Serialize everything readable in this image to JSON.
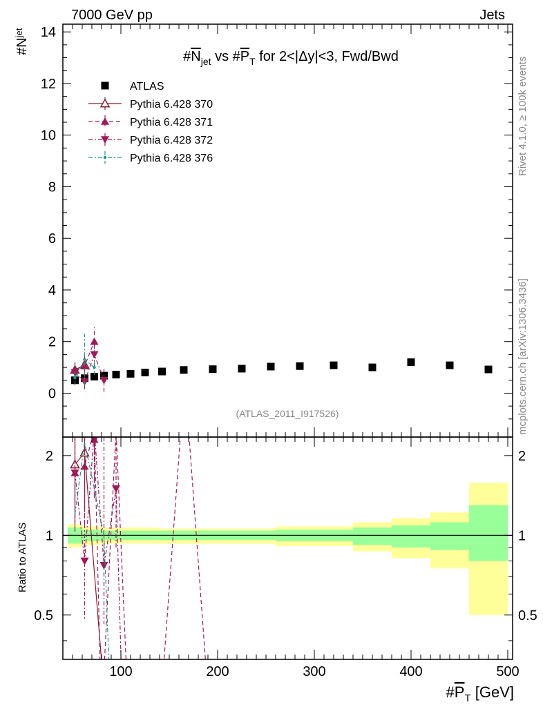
{
  "header": {
    "left": "7000 GeV pp",
    "right": "Jets"
  },
  "side_labels": {
    "top": "Rivet 4.1.0, ≥ 100k events",
    "bottom": "mcplots.cern.ch [arXiv:1306.3436]"
  },
  "colors": {
    "atlas": "#000000",
    "p370": "#8b1a2a",
    "p371": "#a0185a",
    "p372": "#a0185a",
    "p376": "#159a8a",
    "band_inner": "#99ff99",
    "band_outer": "#ffff99"
  },
  "chart_data": [
    {
      "type": "scatter",
      "title": "#N̅jet vs #P̅T for 2<|Δy|<3, Fwd/Bwd",
      "title_parts": {
        "a": "#",
        "b": "N",
        "c": "jet",
        "d": " vs #",
        "e": "P",
        "f": "T",
        "g": " for 2<|Δy|<3, Fwd/Bwd"
      },
      "ylabel": {
        "main": "#N",
        "sub": "jet"
      },
      "xlim": [
        40,
        505
      ],
      "ylim": [
        -1.7,
        14.3
      ],
      "yticks": [
        "0",
        "2",
        "4",
        "6",
        "8",
        "10",
        "12",
        "14"
      ],
      "watermark": "(ATLAS_2011_I917526)",
      "legend_position": "top-left",
      "series": [
        {
          "name": "ATLAS",
          "marker": "square",
          "x": [
            52.5,
            62.5,
            72.5,
            82.5,
            95,
            110,
            125,
            142.5,
            165,
            195,
            225,
            255,
            285,
            320,
            360,
            400,
            440,
            480
          ],
          "y": [
            0.5,
            0.58,
            0.64,
            0.68,
            0.72,
            0.75,
            0.8,
            0.84,
            0.9,
            0.93,
            0.95,
            1.03,
            1.05,
            1.08,
            1.0,
            1.2,
            1.08,
            0.92
          ]
        },
        {
          "name": "Pythia 6.428 370",
          "marker": "triangle-up-open",
          "line": "solid",
          "x": [
            52.5,
            62.5
          ],
          "y": [
            0.9,
            1.1
          ],
          "err": [
            0.3,
            0.35
          ]
        },
        {
          "name": "Pythia 6.428 371",
          "marker": "triangle-up",
          "line": "dashed",
          "x": [
            52.5,
            62.5,
            72.5
          ],
          "y": [
            0.9,
            1.05,
            2.0
          ],
          "err": [
            0.3,
            0.4,
            0.55
          ]
        },
        {
          "name": "Pythia 6.428 372",
          "marker": "triangle-down",
          "line": "dashdot",
          "x": [
            52.5,
            62.5,
            72.5,
            82.5
          ],
          "y": [
            0.8,
            0.45,
            1.5,
            0.5
          ],
          "err": [
            0.3,
            0.3,
            0.5,
            0.45
          ]
        },
        {
          "name": "Pythia 6.428 376",
          "marker": "dot",
          "line": "dashdot",
          "x": [
            52.5,
            62.5,
            72.5
          ],
          "y": [
            0.6,
            1.3,
            1.0
          ],
          "err": [
            0.3,
            1.0,
            0.3
          ]
        }
      ]
    },
    {
      "type": "line",
      "ylabel": "Ratio to ATLAS",
      "xlabel": {
        "pre": "#",
        "main": "P",
        "sub": "T",
        "post": " [GeV]"
      },
      "xlim": [
        40,
        505
      ],
      "ylim": [
        0.34,
        2.35
      ],
      "xticks": [
        "100",
        "200",
        "300",
        "400",
        "500"
      ],
      "yticks": [
        "0.5",
        "1",
        "2"
      ],
      "band_bins": [
        {
          "lo": 45,
          "hi": 60,
          "inner": [
            0.93,
            1.07
          ],
          "outer": [
            0.9,
            1.1
          ]
        },
        {
          "lo": 60,
          "hi": 80,
          "inner": [
            0.95,
            1.05
          ],
          "outer": [
            0.92,
            1.08
          ]
        },
        {
          "lo": 80,
          "hi": 140,
          "inner": [
            0.96,
            1.04
          ],
          "outer": [
            0.93,
            1.07
          ]
        },
        {
          "lo": 140,
          "hi": 260,
          "inner": [
            0.96,
            1.04
          ],
          "outer": [
            0.93,
            1.06
          ]
        },
        {
          "lo": 260,
          "hi": 340,
          "inner": [
            0.95,
            1.05
          ],
          "outer": [
            0.91,
            1.08
          ]
        },
        {
          "lo": 340,
          "hi": 380,
          "inner": [
            0.92,
            1.07
          ],
          "outer": [
            0.87,
            1.12
          ]
        },
        {
          "lo": 380,
          "hi": 420,
          "inner": [
            0.9,
            1.09
          ],
          "outer": [
            0.82,
            1.16
          ]
        },
        {
          "lo": 420,
          "hi": 460,
          "inner": [
            0.88,
            1.12
          ],
          "outer": [
            0.75,
            1.22
          ]
        },
        {
          "lo": 460,
          "hi": 500,
          "inner": [
            0.8,
            1.3
          ],
          "outer": [
            0.5,
            1.58
          ]
        }
      ],
      "series": [
        {
          "name": "Pythia 6.428 370",
          "line": "solid",
          "x": [
            52.5,
            62.5,
            85
          ],
          "y": [
            1.85,
            2.05,
            0.2
          ],
          "markers_shown": 2
        },
        {
          "name": "Pythia 6.428 371",
          "line": "dashed",
          "x": [
            52.5,
            62.5,
            72.5,
            80,
            95,
            108
          ],
          "y": [
            1.72,
            1.82,
            2.5,
            0.2,
            2.5,
            0.2
          ],
          "markers_shown": 3
        },
        {
          "name": "Pythia 6.428 371",
          "line": "dashed",
          "x": [
            140,
            162,
            170,
            192
          ],
          "y": [
            0.2,
            2.5,
            2.5,
            0.2
          ],
          "markers_shown": 0
        },
        {
          "name": "Pythia 6.428 372",
          "line": "dashdot",
          "x": [
            52.5,
            62.5,
            72.5,
            82.5,
            95,
            102
          ],
          "y": [
            1.72,
            0.8,
            2.5,
            0.77,
            1.5,
            0.2
          ],
          "markers_shown": 5
        },
        {
          "name": "Pythia 6.428 376",
          "line": "dashdot",
          "x": [
            52.5,
            62.5,
            72.5,
            82.5,
            90
          ],
          "y": [
            1.2,
            2.25,
            1.5,
            1.0,
            0.2
          ],
          "markers_shown": 0
        }
      ]
    }
  ]
}
